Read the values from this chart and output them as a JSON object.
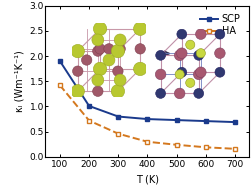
{
  "T": [
    100,
    200,
    300,
    400,
    500,
    600,
    700
  ],
  "SCP": [
    1.9,
    1.01,
    0.8,
    0.75,
    0.73,
    0.71,
    0.69
  ],
  "HA": [
    1.42,
    0.72,
    0.46,
    0.3,
    0.24,
    0.19,
    0.16
  ],
  "scp_color": "#1a3a8c",
  "ha_color": "#d4781e",
  "xlabel": "T (K)",
  "ylabel": "κₗ (Wm⁻¹K⁻¹)",
  "xlim": [
    50,
    750
  ],
  "ylim": [
    0.0,
    3.0
  ],
  "xticks": [
    100,
    200,
    300,
    400,
    500,
    600,
    700
  ],
  "yticks": [
    0.0,
    0.5,
    1.0,
    1.5,
    2.0,
    2.5,
    3.0
  ],
  "legend_scp": "SCP",
  "legend_ha": "HA",
  "axis_fontsize": 7,
  "tick_fontsize": 6.5,
  "legend_fontsize": 7,
  "atom1_color": "#c8d44a",
  "atom2_color": "#b05070",
  "atom3_color": "#404080",
  "bond_color_left": "#c090a0",
  "bond_color_right1": "#8090c0",
  "bond_color_right2": "#c090a0"
}
